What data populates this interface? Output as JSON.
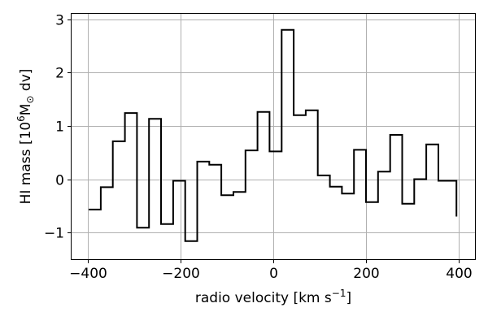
{
  "chart_data": {
    "type": "line",
    "drawstyle": "steps-mid",
    "title": "",
    "xlabel_main": "radio velocity [km s",
    "xlabel_sup": "−1",
    "xlabel_end": "]",
    "ylabel_main": "HI mass [10",
    "ylabel_sup": "6",
    "ylabel_end": "M",
    "ylabel_sub": "⊙",
    "ylabel_tail": " dv]",
    "xlim": [
      -435,
      435
    ],
    "ylim": [
      -1.5,
      3.1
    ],
    "grid": true,
    "xticks": [
      -400,
      -200,
      0,
      200,
      400
    ],
    "xtick_labels": [
      "−400",
      "−200",
      "0",
      "200",
      "400"
    ],
    "yticks": [
      -1,
      0,
      1,
      2,
      3
    ],
    "ytick_labels": [
      "−1",
      "0",
      "1",
      "2",
      "3"
    ],
    "series": [
      {
        "color": "#000000",
        "x": [
          -385,
          -359,
          -333,
          -307,
          -281,
          -255,
          -229,
          -203,
          -177,
          -151,
          -125,
          -99,
          -73,
          -47,
          -21,
          5,
          31,
          57,
          83,
          109,
          135,
          161,
          187,
          213,
          239,
          265,
          291,
          317,
          343,
          369
        ],
        "y": [
          -0.57,
          -0.15,
          0.71,
          1.24,
          -0.91,
          1.13,
          -0.84,
          -0.03,
          -1.16,
          0.33,
          0.27,
          -0.3,
          -0.24,
          0.54,
          1.26,
          0.52,
          2.8,
          1.2,
          1.29,
          0.07,
          -0.14,
          -0.27,
          0.55,
          -0.43,
          0.14,
          0.83,
          -0.46,
          0.0,
          0.65,
          -0.03
        ],
        "x_start": -398,
        "x_end": 395,
        "y_end": -0.7
      }
    ]
  }
}
